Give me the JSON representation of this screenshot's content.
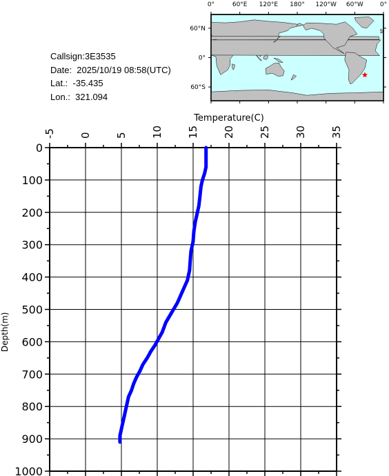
{
  "info": {
    "callsign": "Callsign:3E3535",
    "date": "Date:  2025/10/19 08:58(UTC)",
    "lat": "Lat.:  -35.435",
    "lon": "Lon.:  321.094"
  },
  "map": {
    "lon_labels": [
      "0°",
      "60°E",
      "120°E",
      "180°",
      "120°W",
      "60°W",
      "0°"
    ],
    "lat_labels": [
      "60°N",
      "0°",
      "60°S"
    ],
    "ocean_color": "#ccffff",
    "land_color": "#c0c0c0",
    "marker_color": "#ff0000",
    "marker_icon": "star-icon",
    "marker_lon": 321.094,
    "marker_lat": -35.435
  },
  "chart_data": {
    "type": "line",
    "xlabel": "Temperature(C)",
    "ylabel": "Depth(m)",
    "xlim": [
      -5,
      35
    ],
    "ylim": [
      0,
      1000
    ],
    "x_ticks": [
      "-5",
      "0",
      "5",
      "10",
      "15",
      "20",
      "25",
      "30",
      "35"
    ],
    "y_ticks": [
      "0",
      "100",
      "200",
      "300",
      "400",
      "500",
      "600",
      "700",
      "800",
      "900",
      "1000"
    ],
    "grid": true,
    "series": [
      {
        "color": "#0000ff",
        "x": [
          16.8,
          16.8,
          16.8,
          16.8,
          16.6,
          16.3,
          16.1,
          16.0,
          15.9,
          15.8,
          15.6,
          15.3,
          15.1,
          15.0,
          14.7,
          14.6,
          14.5,
          14.3,
          14.2,
          14.0,
          13.6,
          13.2,
          12.8,
          12.0,
          11.2,
          10.7,
          10.2,
          9.7,
          9.1,
          8.6,
          8.0,
          7.6,
          7.1,
          6.7,
          6.4,
          6.0,
          5.8,
          5.6,
          5.4,
          5.3,
          5.2,
          5.1,
          5.0,
          4.9,
          4.8,
          4.8,
          4.8,
          4.8
        ],
        "y": [
          0,
          20,
          40,
          60,
          80,
          100,
          120,
          140,
          160,
          180,
          200,
          230,
          260,
          290,
          320,
          350,
          380,
          400,
          410,
          420,
          440,
          460,
          480,
          510,
          540,
          570,
          590,
          610,
          630,
          650,
          670,
          690,
          710,
          730,
          750,
          770,
          790,
          810,
          830,
          840,
          850,
          860,
          870,
          880,
          890,
          900,
          905,
          910
        ]
      }
    ]
  }
}
